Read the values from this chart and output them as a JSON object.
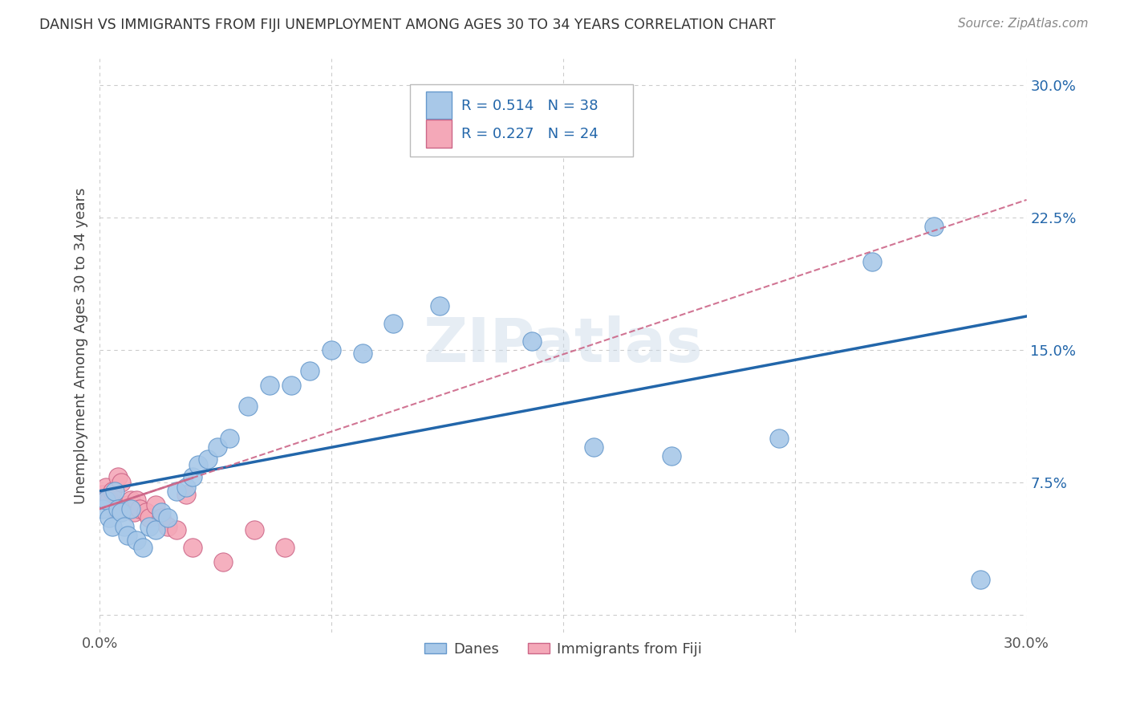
{
  "title": "DANISH VS IMMIGRANTS FROM FIJI UNEMPLOYMENT AMONG AGES 30 TO 34 YEARS CORRELATION CHART",
  "source": "Source: ZipAtlas.com",
  "ylabel": "Unemployment Among Ages 30 to 34 years",
  "ytick_labels": [
    "",
    "7.5%",
    "15.0%",
    "22.5%",
    "30.0%"
  ],
  "ytick_values": [
    0.0,
    0.075,
    0.15,
    0.225,
    0.3
  ],
  "xtick_values": [
    0.0,
    0.075,
    0.15,
    0.225,
    0.3
  ],
  "xlim": [
    0.0,
    0.3
  ],
  "ylim": [
    -0.01,
    0.315
  ],
  "legend1_R": "0.514",
  "legend1_N": "38",
  "legend2_R": "0.227",
  "legend2_N": "24",
  "legend_bottom_label1": "Danes",
  "legend_bottom_label2": "Immigrants from Fiji",
  "danes_color": "#a8c8e8",
  "fiji_color": "#f4a8b8",
  "danes_edge_color": "#6699cc",
  "fiji_edge_color": "#cc6688",
  "watermark": "ZIPatlas",
  "danes_line_color": "#2266aa",
  "fiji_line_color": "#cc6688",
  "danes_scatter_x": [
    0.001,
    0.002,
    0.003,
    0.004,
    0.005,
    0.006,
    0.007,
    0.008,
    0.009,
    0.01,
    0.012,
    0.014,
    0.016,
    0.018,
    0.02,
    0.022,
    0.025,
    0.028,
    0.03,
    0.032,
    0.035,
    0.038,
    0.042,
    0.048,
    0.055,
    0.062,
    0.068,
    0.075,
    0.085,
    0.095,
    0.11,
    0.14,
    0.16,
    0.185,
    0.22,
    0.25,
    0.27,
    0.285
  ],
  "danes_scatter_y": [
    0.06,
    0.065,
    0.055,
    0.05,
    0.07,
    0.06,
    0.058,
    0.05,
    0.045,
    0.06,
    0.042,
    0.038,
    0.05,
    0.048,
    0.058,
    0.055,
    0.07,
    0.072,
    0.078,
    0.085,
    0.088,
    0.095,
    0.1,
    0.118,
    0.13,
    0.13,
    0.138,
    0.15,
    0.148,
    0.165,
    0.175,
    0.155,
    0.095,
    0.09,
    0.1,
    0.2,
    0.22,
    0.02
  ],
  "fiji_scatter_x": [
    0.001,
    0.002,
    0.003,
    0.004,
    0.005,
    0.006,
    0.007,
    0.008,
    0.009,
    0.01,
    0.011,
    0.012,
    0.013,
    0.015,
    0.016,
    0.018,
    0.02,
    0.022,
    0.025,
    0.028,
    0.03,
    0.04,
    0.05,
    0.06
  ],
  "fiji_scatter_y": [
    0.068,
    0.072,
    0.065,
    0.07,
    0.06,
    0.078,
    0.075,
    0.06,
    0.062,
    0.065,
    0.058,
    0.065,
    0.06,
    0.058,
    0.055,
    0.062,
    0.055,
    0.05,
    0.048,
    0.068,
    0.038,
    0.03,
    0.048,
    0.038
  ],
  "danes_line_x0": 0.0,
  "danes_line_x1": 0.3,
  "danes_line_y0": 0.048,
  "danes_line_y1": 0.185,
  "fiji_line_x0": 0.0,
  "fiji_line_x1": 0.3,
  "fiji_line_y0": 0.06,
  "fiji_line_y1": 0.235
}
